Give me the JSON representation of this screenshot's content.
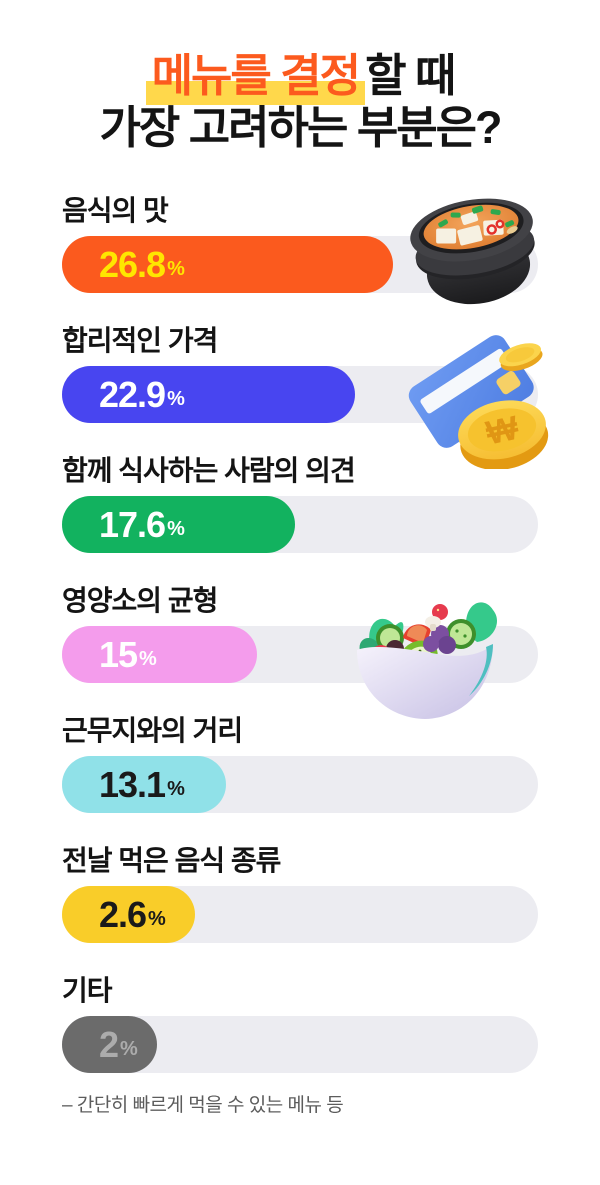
{
  "title": {
    "line1_highlight": "메뉴를 결정",
    "line1_rest": "할 때",
    "line2": "가장 고려하는 부분은?"
  },
  "colors": {
    "background": "#FFFFFF",
    "title_accent": "#FC5A1E",
    "highlight_yellow": "#FFD84B",
    "text_dark": "#141414",
    "track_gray": "#ECECF1",
    "footnote_gray": "#5C5C5C"
  },
  "chart_data": {
    "type": "bar",
    "orientation": "horizontal",
    "title": "메뉴를 결정할 때 가장 고려하는 부분은?",
    "unit": "%",
    "categories": [
      "음식의 맛",
      "합리적인 가격",
      "함께 식사하는 사람의 의견",
      "영양소의 균형",
      "근무지와의 거리",
      "전날 먹은 음식 종류",
      "기타"
    ],
    "values": [
      26.8,
      22.9,
      17.6,
      15,
      13.1,
      2.6,
      2
    ],
    "footnote": "– 간단히 빠르게 먹을 수 있는 메뉴 등",
    "items": [
      {
        "label": "음식의 맛",
        "value": "26.8",
        "percent": 26.8,
        "bar_color": "#FB5A1E",
        "value_color": "#FFE600",
        "fill_width_pct": 69.5,
        "illustration": "soup-pot"
      },
      {
        "label": "합리적인 가격",
        "value": "22.9",
        "percent": 22.9,
        "bar_color": "#4845F0",
        "value_color": "#FFFFFF",
        "fill_width_pct": 61.5,
        "illustration": "credit-card-and-coins"
      },
      {
        "label": "함께 식사하는 사람의 의견",
        "value": "17.6",
        "percent": 17.6,
        "bar_color": "#12B25F",
        "value_color": "#FFFFFF",
        "fill_width_pct": 49,
        "illustration": ""
      },
      {
        "label": "영양소의 균형",
        "value": "15",
        "percent": 15,
        "bar_color": "#F49CEC",
        "value_color": "#FFFFFF",
        "fill_width_pct": 41,
        "illustration": "salad-bowl"
      },
      {
        "label": "근무지와의 거리",
        "value": "13.1",
        "percent": 13.1,
        "bar_color": "#90E1E8",
        "value_color": "#1A1A1A",
        "fill_width_pct": 34.5,
        "illustration": ""
      },
      {
        "label": "전날 먹은 음식 종류",
        "value": "2.6",
        "percent": 2.6,
        "bar_color": "#F9CD29",
        "value_color": "#1A1A1A",
        "fill_width_pct": 28,
        "illustration": ""
      },
      {
        "label": "기타",
        "value": "2",
        "percent": 2,
        "bar_color": "#6B6B6B",
        "value_color": "#ACACAC",
        "fill_width_pct": 20,
        "illustration": "",
        "note": "– 간단히 빠르게 먹을 수 있는 메뉴 등"
      }
    ]
  }
}
